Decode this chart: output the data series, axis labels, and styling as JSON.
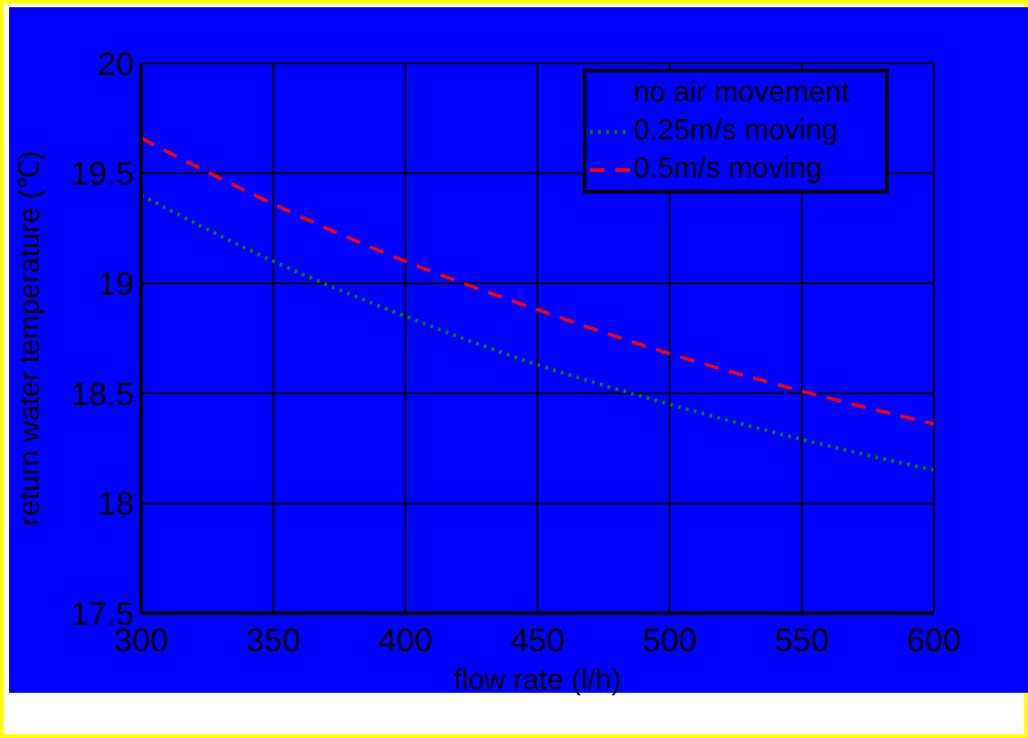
{
  "chart_data": {
    "type": "line",
    "xlabel": "flow rate (l/h)",
    "ylabel": "return water temperature (℃)",
    "x": [
      300,
      350,
      400,
      450,
      500,
      550,
      600
    ],
    "series": [
      {
        "name": "no air movement",
        "line_style": "solid",
        "values": [
          null,
          null,
          null,
          null,
          null,
          null,
          null
        ]
      },
      {
        "name": "0.25m/s moving",
        "color": "#008000",
        "line_style": "dotted",
        "values": [
          19.4,
          19.1,
          18.85,
          18.63,
          18.45,
          18.29,
          18.15
        ]
      },
      {
        "name": "0.5m/s moving",
        "color": "#ff0000",
        "line_style": "dashed",
        "values": [
          19.66,
          19.36,
          19.1,
          18.88,
          18.68,
          18.51,
          18.36
        ]
      }
    ],
    "xlim": [
      300,
      600
    ],
    "xticks": [
      300,
      350,
      400,
      450,
      500,
      550,
      600
    ],
    "ylim": [
      17.5,
      20
    ],
    "yticks": [
      17.5,
      18,
      18.5,
      19,
      19.5,
      20
    ],
    "grid": true,
    "legend": "top right",
    "marker": "none"
  }
}
